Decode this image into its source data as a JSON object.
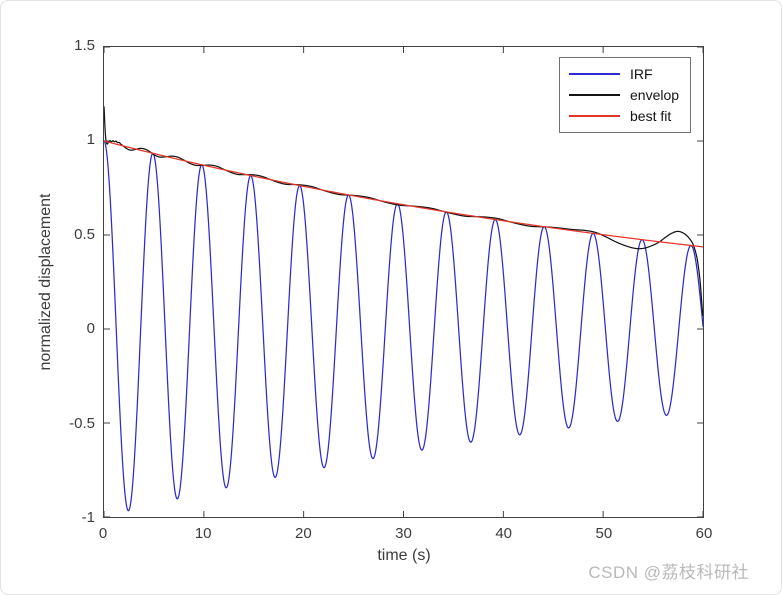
{
  "figure": {
    "watermark": "CSDN @荔枝科研社"
  },
  "colors": {
    "axis": "#3f3f3f",
    "tick_label": "#3c3c3c",
    "legend_border": "#707070",
    "watermark": "#b9b9b9",
    "background": "#ffffff"
  },
  "chart_data": {
    "type": "line",
    "title": "",
    "xlabel": "time (s)",
    "ylabel": "normalized displacement",
    "xlim": [
      0,
      60
    ],
    "ylim": [
      -1,
      1.5
    ],
    "xticks": [
      0,
      10,
      20,
      30,
      40,
      50,
      60
    ],
    "yticks": [
      -1,
      -0.5,
      0,
      0.5,
      1,
      1.5
    ],
    "grid": false,
    "legend_position": "northeast",
    "series": [
      {
        "id": "irf",
        "name": "IRF",
        "color": "#2b2bd0",
        "model": "damped_cosine",
        "formula": "A*exp(-k*t)*cos(2*pi*t/T)",
        "amplitude": 1.0,
        "decay_per_s": 0.0138,
        "period_s": 4.9
      },
      {
        "id": "envelop",
        "name": "envelop",
        "color": "#141414",
        "model": "exp_decay_plus_deviation",
        "formula": "exp(-k*t) + dev(t)",
        "decay_per_s": 0.0138,
        "deviation_points": [
          [
            0,
            0.182
          ],
          [
            0.08,
            0.09
          ],
          [
            0.18,
            0.012
          ],
          [
            0.3,
            -0.012
          ],
          [
            0.45,
            0.0
          ],
          [
            0.6,
            0.01
          ],
          [
            0.75,
            0.006
          ],
          [
            0.9,
            0.014
          ],
          [
            1.05,
            0.01
          ],
          [
            1.2,
            0.016
          ],
          [
            1.35,
            0.01
          ],
          [
            1.5,
            0.013
          ],
          [
            1.7,
            0.006
          ],
          [
            1.9,
            0.0
          ],
          [
            2.2,
            -0.008
          ],
          [
            2.6,
            -0.013
          ],
          [
            3.1,
            -0.004
          ],
          [
            3.6,
            0.009
          ],
          [
            4.1,
            0.012
          ],
          [
            4.6,
            0.004
          ],
          [
            5.1,
            -0.008
          ],
          [
            5.6,
            -0.011
          ],
          [
            6.2,
            -0.002
          ],
          [
            6.8,
            0.009
          ],
          [
            7.4,
            0.011
          ],
          [
            8.0,
            0.003
          ],
          [
            8.6,
            -0.007
          ],
          [
            9.2,
            -0.01
          ],
          [
            9.9,
            -0.002
          ],
          [
            10.6,
            0.008
          ],
          [
            11.3,
            0.01
          ],
          [
            12.0,
            0.002
          ],
          [
            12.7,
            -0.006
          ],
          [
            13.4,
            -0.009
          ],
          [
            14.2,
            -0.001
          ],
          [
            15.0,
            0.007
          ],
          [
            15.8,
            0.008
          ],
          [
            16.6,
            0.001
          ],
          [
            17.4,
            -0.006
          ],
          [
            18.2,
            -0.008
          ],
          [
            19.1,
            0.0
          ],
          [
            20.0,
            0.006
          ],
          [
            20.9,
            0.007
          ],
          [
            21.8,
            0.0
          ],
          [
            22.7,
            -0.005
          ],
          [
            23.6,
            -0.007
          ],
          [
            24.6,
            0.0
          ],
          [
            25.6,
            0.005
          ],
          [
            26.6,
            0.006
          ],
          [
            27.6,
            0.0
          ],
          [
            28.6,
            -0.005
          ],
          [
            29.6,
            -0.006
          ],
          [
            30.7,
            0.0
          ],
          [
            31.8,
            0.005
          ],
          [
            32.9,
            0.006
          ],
          [
            34.0,
            0.0
          ],
          [
            35.1,
            -0.005
          ],
          [
            36.2,
            -0.007
          ],
          [
            37.3,
            0.0
          ],
          [
            38.4,
            0.006
          ],
          [
            39.5,
            0.007
          ],
          [
            40.6,
            0.0
          ],
          [
            41.7,
            -0.006
          ],
          [
            42.8,
            -0.008
          ],
          [
            43.9,
            -0.002
          ],
          [
            45.0,
            0.003
          ],
          [
            46.0,
            0.005
          ],
          [
            47.0,
            0.006
          ],
          [
            48.2,
            0.01
          ],
          [
            49.2,
            0.007
          ],
          [
            50.2,
            -0.008
          ],
          [
            51.2,
            -0.028
          ],
          [
            52.2,
            -0.043
          ],
          [
            53.2,
            -0.051
          ],
          [
            54.0,
            -0.046
          ],
          [
            54.8,
            -0.028
          ],
          [
            55.6,
            -0.002
          ],
          [
            56.4,
            0.034
          ],
          [
            57.0,
            0.057
          ],
          [
            57.5,
            0.067
          ],
          [
            58.0,
            0.062
          ],
          [
            58.5,
            0.044
          ],
          [
            59.0,
            0.008
          ],
          [
            59.4,
            -0.062
          ],
          [
            59.7,
            -0.18
          ],
          [
            60,
            -0.366
          ]
        ]
      },
      {
        "id": "best_fit",
        "name": "best fit",
        "color": "#e53528",
        "model": "exp_decay",
        "formula": "exp(-k*t)",
        "amplitude": 1.0,
        "decay_per_s": 0.0138
      }
    ]
  }
}
